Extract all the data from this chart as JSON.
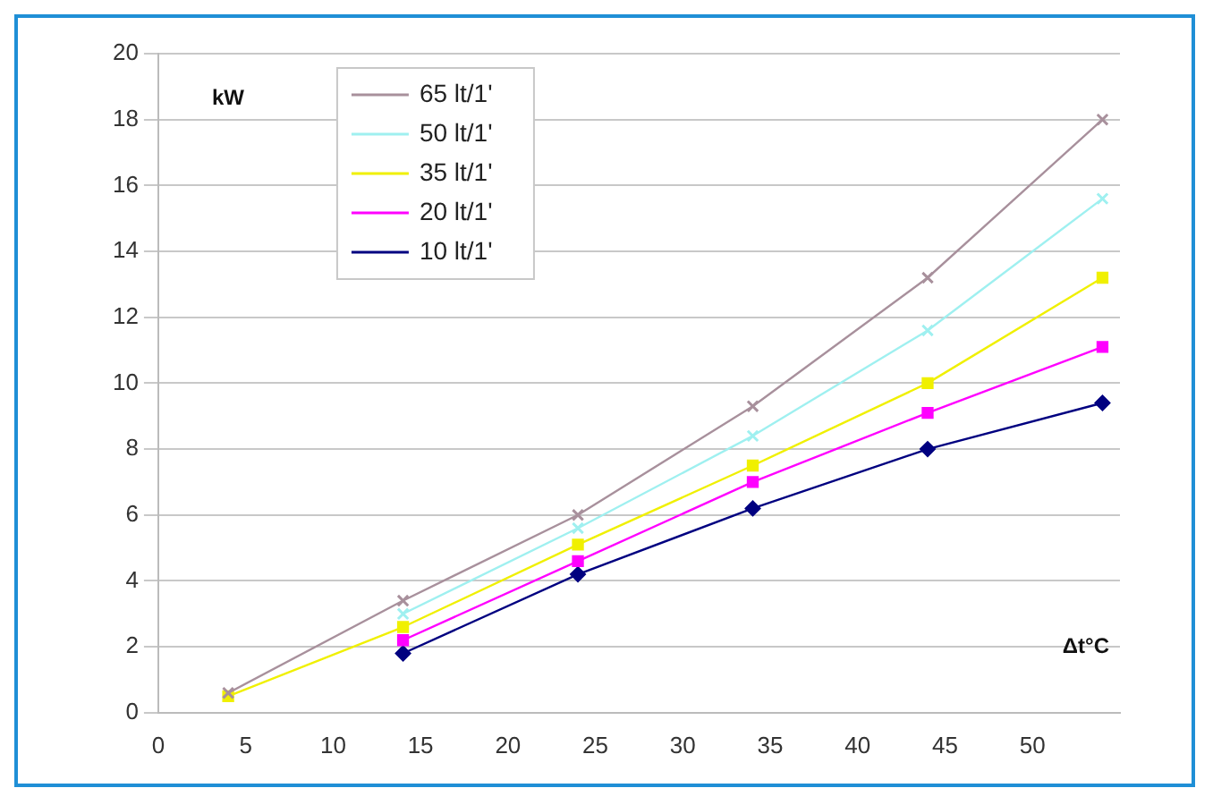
{
  "chart_data": {
    "type": "line",
    "xlim": [
      0,
      55
    ],
    "xticks": [
      0,
      5,
      10,
      15,
      20,
      25,
      30,
      35,
      40,
      45,
      50
    ],
    "ylim": [
      0,
      20
    ],
    "yticks": [
      0,
      2,
      4,
      6,
      8,
      10,
      12,
      14,
      16,
      18,
      20
    ],
    "grid": "y",
    "legend": "top left",
    "annotations": [
      "kW",
      "Δt°C"
    ],
    "series": [
      {
        "name": "65 lt/1'",
        "color": "#a8909c",
        "marker": "cross",
        "x": [
          4,
          14,
          24,
          34,
          44,
          54
        ],
        "values": [
          0.6,
          3.4,
          6.0,
          9.3,
          13.2,
          18.0
        ]
      },
      {
        "name": "50 lt/1'",
        "color": "#9ff0f0",
        "marker": "cross",
        "x": [
          14,
          24,
          34,
          44,
          54
        ],
        "values": [
          3.0,
          5.6,
          8.4,
          11.6,
          15.6
        ]
      },
      {
        "name": "35 lt/1'",
        "color": "#f0f000",
        "marker": "square",
        "x": [
          4,
          14,
          24,
          34,
          44,
          54
        ],
        "values": [
          0.5,
          2.6,
          5.1,
          7.5,
          10.0,
          13.2
        ]
      },
      {
        "name": "20 lt/1'",
        "color": "#ff00ff",
        "marker": "square",
        "x": [
          14,
          24,
          34,
          44,
          54
        ],
        "values": [
          2.2,
          4.6,
          7.0,
          9.1,
          11.1
        ]
      },
      {
        "name": "10 lt/1'",
        "color": "#000080",
        "marker": "diamond",
        "x": [
          14,
          24,
          34,
          44,
          54
        ],
        "values": [
          1.8,
          4.2,
          6.2,
          8.0,
          9.4
        ]
      }
    ]
  }
}
